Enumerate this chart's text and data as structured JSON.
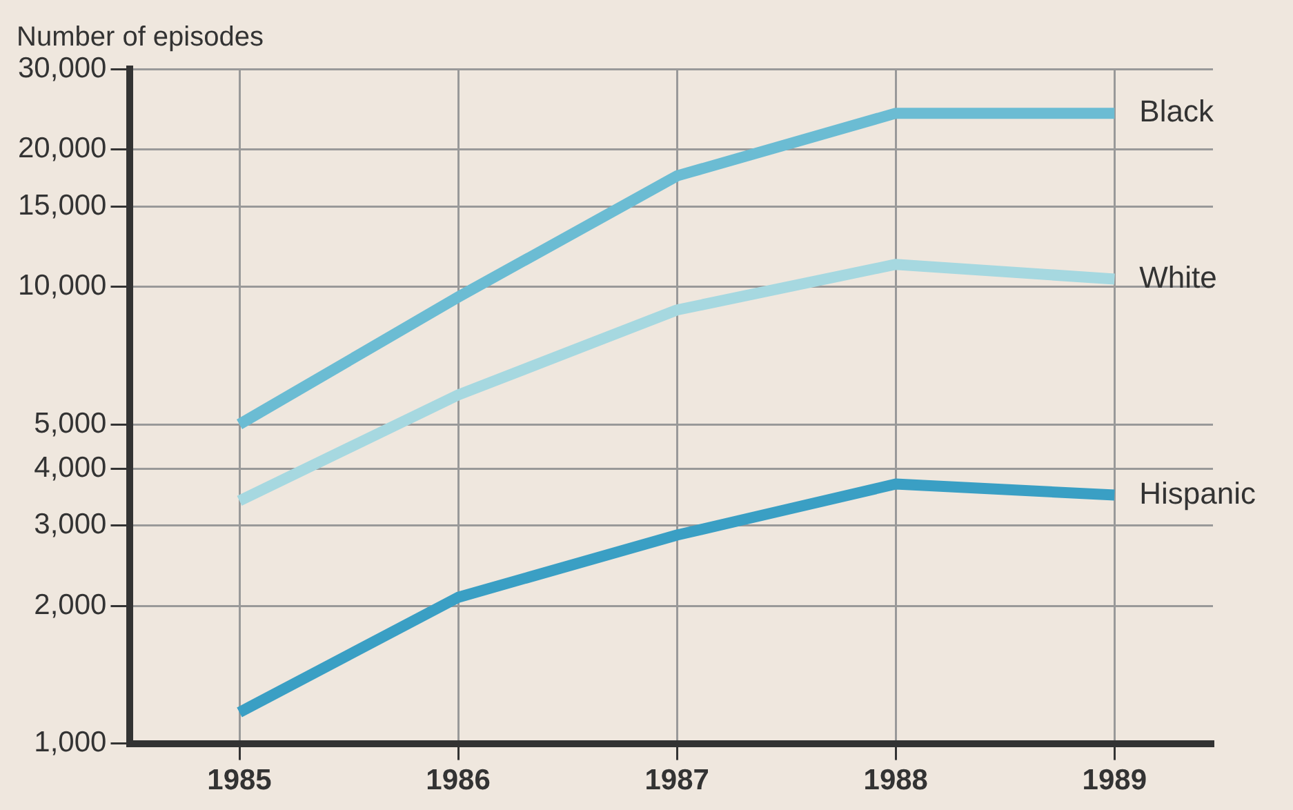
{
  "chart_data": {
    "type": "line",
    "ylabel": "Number of episodes",
    "x": [
      1985,
      1986,
      1987,
      1988,
      1989
    ],
    "xlim": [
      1984.5,
      1989.45
    ],
    "xticks": [
      1985,
      1986,
      1987,
      1988,
      1989
    ],
    "log": true,
    "ylim": [
      1000,
      30000
    ],
    "yticks": [
      {
        "value": 1000,
        "label": "1,000"
      },
      {
        "value": 2000,
        "label": "2,000"
      },
      {
        "value": 3000,
        "label": "3,000"
      },
      {
        "value": 4000,
        "label": "4,000"
      },
      {
        "value": 5000,
        "label": "5,000"
      },
      {
        "value": 10000,
        "label": "10,000"
      },
      {
        "value": 15000,
        "label": "15,000"
      },
      {
        "value": 20000,
        "label": "20,000"
      },
      {
        "value": 30000,
        "label": "30,000"
      }
    ],
    "grid": true,
    "legend": false,
    "marker": "none",
    "line_style": "solid",
    "series": [
      {
        "name": "Black",
        "color": "#6bbcd3",
        "values": [
          5000,
          9500,
          17500,
          24000,
          24000
        ]
      },
      {
        "name": "White",
        "color": "#a6d8e0",
        "values": [
          3400,
          5800,
          8900,
          11200,
          10400
        ]
      },
      {
        "name": "Hispanic",
        "color": "#3a9fc4",
        "values": [
          1170,
          2090,
          2860,
          3700,
          3500
        ]
      }
    ]
  }
}
